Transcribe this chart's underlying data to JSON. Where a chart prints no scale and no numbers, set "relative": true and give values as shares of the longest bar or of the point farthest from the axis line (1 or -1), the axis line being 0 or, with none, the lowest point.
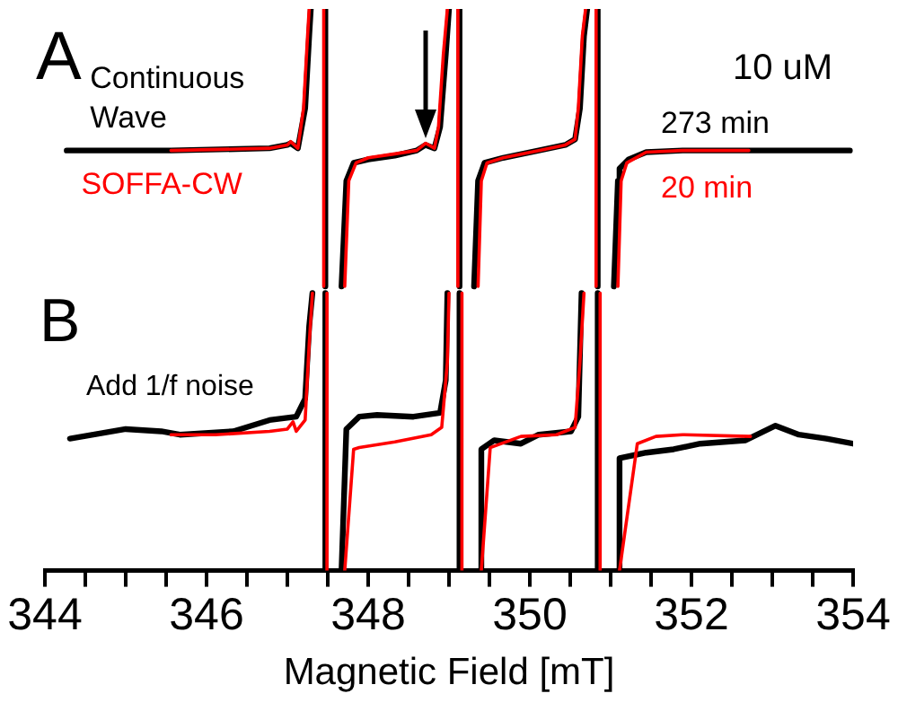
{
  "chart_data": {
    "type": "line",
    "relative": true,
    "xlabel": "Magnetic Field [mT]",
    "xlim": [
      344,
      354
    ],
    "xticks": [
      344,
      {
        "value": 344.5,
        "label": null
      },
      {
        "value": 345,
        "label": null
      },
      {
        "value": 345.5,
        "label": null
      },
      346,
      {
        "value": 346.5,
        "label": null
      },
      {
        "value": 347,
        "label": null
      },
      {
        "value": 347.5,
        "label": null
      },
      348,
      {
        "value": 348.5,
        "label": null
      },
      {
        "value": 349,
        "label": null
      },
      {
        "value": 349.5,
        "label": null
      },
      350,
      {
        "value": 350.5,
        "label": null
      },
      {
        "value": 351,
        "label": null
      },
      {
        "value": 351.5,
        "label": null
      },
      352,
      {
        "value": 352.5,
        "label": null
      },
      {
        "value": 353,
        "label": null
      },
      {
        "value": 353.5,
        "label": null
      },
      354
    ],
    "grid": false,
    "legend": false,
    "tick_labels": "x",
    "marker": "none",
    "line_style": "solid",
    "annotations": [
      "A",
      "10 uM",
      "B",
      "Add 1/f noise",
      {
        "text": "Continuous Wave",
        "x": 344.27,
        "y": 0.748
      },
      {
        "text": "SOFFA-CW",
        "x": 345.56,
        "y": 0.748
      }
    ],
    "series": [
      {
        "name": "273 min",
        "color": "#000000",
        "x": [
          344.27,
          345.56,
          346.78,
          347.0,
          347.04,
          347.13,
          347.22,
          347.27,
          347.29,
          347.38,
          347.47,
          347.47,
          347.57,
          347.67,
          347.73,
          347.82,
          348.0,
          348.33,
          348.6,
          348.71,
          348.82,
          348.89,
          348.96,
          349.0,
          349.06,
          349.13,
          349.13,
          349.22,
          349.31,
          349.36,
          349.44,
          349.67,
          350.11,
          350.44,
          350.56,
          350.62,
          350.67,
          350.71,
          350.78,
          350.84,
          350.84,
          350.94,
          351.04,
          351.09,
          351.11,
          351.22,
          351.44,
          351.89,
          352.78,
          353.96
        ],
        "values": [
          0.748,
          0.748,
          0.752,
          0.758,
          0.761,
          0.752,
          0.823,
          0.952,
          1,
          null,
          1,
          0.506,
          null,
          0.506,
          0.694,
          0.726,
          0.732,
          0.739,
          0.748,
          0.758,
          0.752,
          0.79,
          0.919,
          1,
          null,
          1,
          0.506,
          null,
          0.506,
          0.694,
          0.726,
          0.735,
          0.748,
          0.758,
          0.768,
          0.823,
          0.952,
          1,
          null,
          1,
          0.506,
          null,
          0.506,
          0.694,
          0.716,
          0.732,
          0.745,
          0.748,
          0.748,
          0.748
        ]
      },
      {
        "name": "20 min",
        "color": "#ff0000",
        "x": [
          345.56,
          346.78,
          347.0,
          347.04,
          347.13,
          347.2,
          347.25,
          347.27,
          347.36,
          347.45,
          347.45,
          347.58,
          347.71,
          347.76,
          347.85,
          348.0,
          348.33,
          348.6,
          348.71,
          348.82,
          348.87,
          348.93,
          348.98,
          349.04,
          349.11,
          349.11,
          349.24,
          349.36,
          349.4,
          349.47,
          349.67,
          350.11,
          350.44,
          350.56,
          350.6,
          350.65,
          350.69,
          350.76,
          350.82,
          350.82,
          350.96,
          351.09,
          351.13,
          351.2,
          351.44,
          351.89,
          352.71
        ],
        "values": [
          0.748,
          0.752,
          0.758,
          0.764,
          0.752,
          0.823,
          0.952,
          1,
          null,
          1,
          0.506,
          null,
          0.506,
          0.694,
          0.726,
          0.735,
          0.742,
          0.748,
          0.761,
          0.752,
          0.79,
          0.919,
          1,
          null,
          1,
          0.506,
          null,
          0.506,
          0.694,
          0.726,
          0.735,
          0.748,
          0.758,
          0.768,
          0.823,
          0.952,
          1,
          null,
          1,
          0.506,
          null,
          0.506,
          0.694,
          0.726,
          0.745,
          0.748,
          0.748
        ]
      },
      {
        "color": "#000000",
        "x": [
          344.31,
          345.0,
          345.44,
          345.67,
          346.33,
          346.78,
          347.11,
          347.22,
          347.27,
          347.31,
          347.39,
          347.47,
          347.47,
          347.57,
          347.67,
          347.73,
          347.89,
          348.11,
          348.56,
          348.89,
          348.96,
          348.98,
          349.06,
          349.13,
          349.13,
          349.26,
          349.38,
          349.4,
          349.56,
          349.89,
          350.11,
          350.51,
          350.6,
          350.64,
          350.74,
          350.84,
          350.84,
          350.96,
          351.09,
          351.11,
          351.44,
          351.78,
          352.11,
          352.67,
          353.04,
          353.33,
          353.67,
          354.0
        ],
        "values": [
          0.235,
          0.252,
          0.248,
          0.242,
          0.248,
          0.268,
          0.274,
          0.306,
          0.435,
          0.494,
          null,
          0.494,
          0,
          null,
          0,
          0.252,
          0.274,
          0.277,
          0.274,
          0.281,
          0.339,
          0.494,
          null,
          0.494,
          0,
          null,
          0,
          0.216,
          0.232,
          0.226,
          0.242,
          0.248,
          0.274,
          0.494,
          null,
          0.494,
          0,
          null,
          0,
          0.2,
          0.21,
          0.216,
          0.226,
          0.232,
          0.258,
          0.242,
          0.235,
          0.226
        ]
      },
      {
        "color": "#ff0000",
        "x": [
          345.56,
          346.11,
          346.78,
          347.0,
          347.07,
          347.11,
          347.22,
          347.27,
          347.31,
          347.4,
          347.49,
          347.49,
          347.6,
          347.71,
          347.82,
          347.89,
          348.33,
          348.78,
          348.91,
          348.98,
          349.0,
          349.08,
          349.16,
          349.16,
          349.28,
          349.4,
          349.51,
          349.89,
          350.33,
          350.56,
          350.62,
          350.67,
          350.77,
          350.87,
          350.87,
          350.99,
          351.11,
          351.33,
          351.56,
          351.89,
          352.73
        ],
        "values": [
          0.242,
          0.242,
          0.248,
          0.252,
          0.265,
          0.248,
          0.268,
          0.403,
          0.494,
          null,
          0.494,
          0,
          null,
          0,
          0.216,
          0.219,
          0.229,
          0.242,
          0.255,
          0.371,
          0.494,
          null,
          0.494,
          0,
          null,
          0,
          0.219,
          0.239,
          0.242,
          0.255,
          0.371,
          0.494,
          null,
          0.494,
          0,
          null,
          0,
          0.226,
          0.239,
          0.242,
          0.239
        ]
      }
    ]
  }
}
